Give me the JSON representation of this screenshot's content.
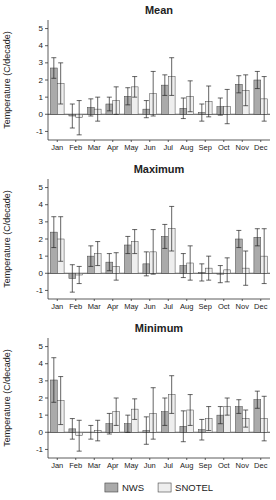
{
  "chart_data": [
    {
      "type": "bar",
      "title": "Mean",
      "categories": [
        "Jan",
        "Feb",
        "Mar",
        "Apr",
        "May",
        "Jun",
        "Jul",
        "Aug",
        "Sep",
        "Oct",
        "Nov",
        "Dec"
      ],
      "series": [
        {
          "name": "NWS",
          "color": "#aaaaaa",
          "values": [
            2.7,
            -0.1,
            0.4,
            0.6,
            1.05,
            0.3,
            1.7,
            0.35,
            0.1,
            0.45,
            1.75,
            2.0
          ],
          "errors": [
            0.6,
            0.7,
            0.5,
            0.4,
            0.5,
            0.5,
            0.6,
            0.6,
            0.5,
            0.5,
            0.5,
            0.5
          ]
        },
        {
          "name": "SNOTEL",
          "color": "#eeeeee",
          "values": [
            1.8,
            -0.2,
            0.3,
            0.8,
            1.6,
            1.2,
            2.2,
            1.05,
            0.75,
            0.45,
            1.4,
            0.9
          ],
          "errors": [
            1.2,
            1.0,
            0.7,
            0.8,
            0.6,
            1.3,
            1.1,
            0.9,
            0.9,
            1.0,
            0.9,
            1.3
          ]
        }
      ],
      "y_label": "Temperature (C/decade)",
      "ylim": [
        -1.5,
        5.5
      ],
      "yticks": [
        -1,
        0,
        1,
        2,
        3,
        4,
        5
      ],
      "grid": false,
      "legend": "bottom"
    },
    {
      "type": "bar",
      "title": "Maximum",
      "categories": [
        "Jan",
        "Feb",
        "Mar",
        "Apr",
        "May",
        "Jun",
        "Jul",
        "Aug",
        "Sep",
        "Oct",
        "Nov",
        "Dec"
      ],
      "series": [
        {
          "name": "NWS",
          "color": "#aaaaaa",
          "values": [
            2.4,
            -0.3,
            1.0,
            0.65,
            1.65,
            0.55,
            2.15,
            0.45,
            0.05,
            -0.05,
            2.0,
            2.1
          ],
          "errors": [
            0.9,
            0.8,
            0.6,
            0.5,
            0.5,
            0.7,
            0.7,
            0.7,
            0.5,
            0.5,
            0.5,
            0.5
          ]
        },
        {
          "name": "SNOTEL",
          "color": "#eeeeee",
          "values": [
            2.0,
            -0.1,
            1.15,
            0.4,
            1.85,
            1.25,
            2.6,
            0.6,
            0.3,
            0.2,
            0.3,
            1.0
          ],
          "errors": [
            1.3,
            0.5,
            0.7,
            0.8,
            0.7,
            1.3,
            1.3,
            1.0,
            0.7,
            0.7,
            1.0,
            1.6
          ]
        }
      ],
      "y_label": "Temperature (C/decade)",
      "ylim": [
        -1.5,
        5.5
      ],
      "yticks": [
        -1,
        0,
        1,
        2,
        3,
        4,
        5
      ],
      "grid": false,
      "legend": "bottom"
    },
    {
      "type": "bar",
      "title": "Minimum",
      "categories": [
        "Jan",
        "Feb",
        "Mar",
        "Apr",
        "May",
        "Jun",
        "Jul",
        "Aug",
        "Sep",
        "Oct",
        "Nov",
        "Dec"
      ],
      "series": [
        {
          "name": "NWS",
          "color": "#aaaaaa",
          "values": [
            3.05,
            0.2,
            0.0,
            0.5,
            0.5,
            0.1,
            1.2,
            0.35,
            0.15,
            1.0,
            1.5,
            1.9
          ],
          "errors": [
            1.3,
            0.6,
            0.4,
            0.6,
            0.5,
            0.8,
            0.8,
            0.9,
            0.6,
            0.5,
            0.4,
            0.5
          ]
        },
        {
          "name": "SNOTEL",
          "color": "#eeeeee",
          "values": [
            1.85,
            -0.2,
            0.1,
            1.2,
            1.35,
            1.1,
            2.2,
            1.3,
            0.8,
            1.5,
            0.8,
            0.8
          ],
          "errors": [
            1.4,
            0.9,
            0.6,
            0.8,
            0.6,
            1.5,
            1.1,
            0.9,
            0.7,
            0.5,
            0.5,
            1.3
          ]
        }
      ],
      "y_label": "Temperature (C/decade)",
      "ylim": [
        -1.5,
        5.5
      ],
      "yticks": [
        -1,
        0,
        1,
        2,
        3,
        4,
        5
      ],
      "grid": false,
      "legend": "bottom"
    }
  ]
}
